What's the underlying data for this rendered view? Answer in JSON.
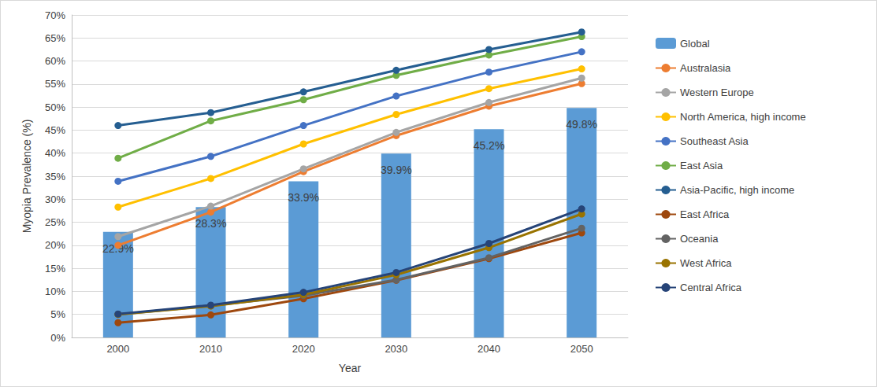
{
  "chart_data": {
    "type": "line",
    "x_label": "Year",
    "y_label": "Myopia Prevalence (%)",
    "categories": [
      "2000",
      "2010",
      "2020",
      "2030",
      "2040",
      "2050"
    ],
    "ylim": [
      0,
      70
    ],
    "yticks": [
      {
        "value": 0,
        "label": "0%"
      },
      {
        "value": 5,
        "label": "5%"
      },
      {
        "value": 10,
        "label": "10%"
      },
      {
        "value": 15,
        "label": "15%"
      },
      {
        "value": 20,
        "label": "20%"
      },
      {
        "value": 25,
        "label": "25%"
      },
      {
        "value": 30,
        "label": "30%"
      },
      {
        "value": 35,
        "label": "35%"
      },
      {
        "value": 40,
        "label": "40%"
      },
      {
        "value": 45,
        "label": "45%"
      },
      {
        "value": 50,
        "label": "50%"
      },
      {
        "value": 55,
        "label": "55%"
      },
      {
        "value": 60,
        "label": "60%"
      },
      {
        "value": 65,
        "label": "65%"
      },
      {
        "value": 70,
        "label": "70%"
      }
    ],
    "grid": true,
    "legend": "right",
    "marker": "circle",
    "series": [
      {
        "name": "Global",
        "type": "bar",
        "color": "#5b9bd5",
        "data_labels": true,
        "values": [
          22.9,
          28.3,
          33.9,
          39.9,
          45.2,
          49.8
        ],
        "value_labels": [
          "22.9%",
          "28.3%",
          "33.9%",
          "39.9%",
          "45.2%",
          "49.8%"
        ]
      },
      {
        "name": "Australasia",
        "type": "line",
        "color": "#ed7d31",
        "values": [
          20.0,
          27.2,
          36.0,
          43.8,
          50.2,
          55.1
        ]
      },
      {
        "name": "Western Europe",
        "type": "line",
        "color": "#a5a5a5",
        "values": [
          21.9,
          28.5,
          36.6,
          44.5,
          51.0,
          56.3
        ]
      },
      {
        "name": "North America, high income",
        "type": "line",
        "color": "#ffc000",
        "values": [
          28.3,
          34.5,
          42.0,
          48.4,
          54.0,
          58.3
        ]
      },
      {
        "name": "Southeast Asia",
        "type": "line",
        "color": "#4472c4",
        "values": [
          33.9,
          39.3,
          46.0,
          52.4,
          57.6,
          62.0
        ]
      },
      {
        "name": "East Asia",
        "type": "line",
        "color": "#70ad47",
        "values": [
          38.9,
          47.0,
          51.6,
          56.9,
          61.3,
          65.3
        ]
      },
      {
        "name": "Asia-Pacific, high income",
        "type": "line",
        "color": "#255e91",
        "values": [
          46.0,
          48.8,
          53.3,
          58.0,
          62.5,
          66.3
        ]
      },
      {
        "name": "East Africa",
        "type": "line",
        "color": "#9e480e",
        "values": [
          3.2,
          4.9,
          8.4,
          12.4,
          17.1,
          22.7
        ]
      },
      {
        "name": "Oceania",
        "type": "line",
        "color": "#636363",
        "values": [
          5.0,
          6.9,
          9.1,
          12.5,
          17.3,
          23.7
        ]
      },
      {
        "name": "West Africa",
        "type": "line",
        "color": "#997300",
        "values": [
          5.0,
          6.8,
          9.3,
          13.6,
          19.5,
          26.8
        ]
      },
      {
        "name": "Central Africa",
        "type": "line",
        "color": "#264478",
        "values": [
          5.1,
          7.0,
          9.8,
          14.1,
          20.4,
          27.9
        ]
      }
    ]
  }
}
